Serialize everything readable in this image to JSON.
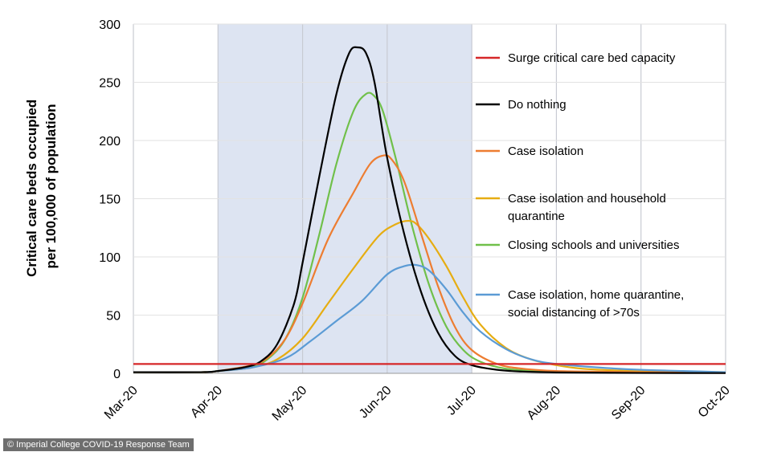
{
  "chart_data": {
    "type": "line",
    "title": "",
    "xlabel": "",
    "ylabel": "Critical care beds occupied per 100,000 of population",
    "ylabel_lines": [
      "Critical care beds occupied",
      "per 100,000 of population"
    ],
    "ylim": [
      0,
      300
    ],
    "yticks": [
      0,
      50,
      100,
      150,
      200,
      250,
      300
    ],
    "xlim": [
      0,
      7
    ],
    "xtick_labels": [
      "Mar-20",
      "Apr-20",
      "May-20",
      "Jun-20",
      "Jul-20",
      "Aug-20",
      "Sep-20",
      "Oct-20"
    ],
    "grid": true,
    "shaded_region": {
      "x_start": 1.0,
      "x_end": 4.0,
      "color": "#dde4f2"
    },
    "legend_position": "right",
    "series": [
      {
        "name": "Surge critical care bed capacity",
        "legend_lines": [
          "Surge critical care bed capacity"
        ],
        "color": "#d62728",
        "type": "hline",
        "y": 8
      },
      {
        "name": "Do nothing",
        "legend_lines": [
          "Do nothing"
        ],
        "color": "#000000",
        "x": [
          0,
          0.8,
          1.0,
          1.3,
          1.5,
          1.7,
          1.9,
          2.0,
          2.2,
          2.4,
          2.55,
          2.65,
          2.75,
          2.85,
          3.0,
          3.2,
          3.4,
          3.6,
          3.8,
          4.0,
          4.3,
          4.6,
          5.0,
          5.5,
          6.0,
          7.0
        ],
        "y": [
          1,
          1,
          2,
          5,
          10,
          25,
          60,
          95,
          170,
          240,
          275,
          280,
          275,
          250,
          185,
          120,
          70,
          35,
          15,
          7,
          3,
          1.5,
          0.8,
          0.5,
          0.3,
          0.2
        ]
      },
      {
        "name": "Case isolation",
        "legend_lines": [
          "Case isolation"
        ],
        "color": "#ed7d31",
        "x": [
          0,
          0.8,
          1.0,
          1.4,
          1.6,
          1.8,
          2.0,
          2.3,
          2.6,
          2.8,
          2.95,
          3.05,
          3.2,
          3.4,
          3.6,
          3.8,
          4.0,
          4.3,
          4.6,
          5.0,
          5.5,
          6.0,
          7.0
        ],
        "y": [
          1,
          1,
          2,
          7,
          14,
          30,
          60,
          115,
          155,
          180,
          187,
          184,
          165,
          120,
          75,
          40,
          20,
          8,
          4,
          2,
          1.5,
          1,
          0.5
        ]
      },
      {
        "name": "Case isolation and household quarantine",
        "legend_lines": [
          "Case isolation and household",
          "quarantine"
        ],
        "color": "#e6ad12",
        "x": [
          0,
          0.8,
          1.0,
          1.4,
          1.7,
          2.0,
          2.3,
          2.6,
          2.9,
          3.1,
          3.25,
          3.35,
          3.5,
          3.7,
          3.9,
          4.1,
          4.4,
          4.7,
          5.0,
          5.3,
          5.7,
          6.0,
          7.0
        ],
        "y": [
          1,
          1,
          2,
          5,
          12,
          30,
          60,
          90,
          118,
          128,
          131,
          128,
          115,
          92,
          65,
          42,
          22,
          12,
          7,
          4,
          2.5,
          2,
          1
        ]
      },
      {
        "name": "Closing schools and universities",
        "legend_lines": [
          "Closing schools and universities"
        ],
        "color": "#70c04a",
        "x": [
          0,
          0.8,
          1.0,
          1.4,
          1.6,
          1.8,
          2.0,
          2.2,
          2.4,
          2.6,
          2.75,
          2.85,
          2.95,
          3.1,
          3.3,
          3.5,
          3.7,
          3.9,
          4.1,
          4.4,
          4.8,
          5.2,
          6.0,
          7.0
        ],
        "y": [
          1,
          1,
          2,
          6,
          13,
          30,
          65,
          120,
          180,
          225,
          240,
          238,
          225,
          185,
          125,
          75,
          40,
          20,
          10,
          4,
          2,
          1.5,
          1,
          0.5
        ]
      },
      {
        "name": "Case isolation, home quarantine, social distancing of >70s",
        "legend_lines": [
          "Case isolation, home quarantine,",
          "social distancing of >70s"
        ],
        "color": "#5b9bd5",
        "x": [
          0,
          0.8,
          1.0,
          1.4,
          1.8,
          2.1,
          2.4,
          2.7,
          3.0,
          3.2,
          3.35,
          3.5,
          3.7,
          3.9,
          4.1,
          4.4,
          4.7,
          5.0,
          5.5,
          6.0,
          6.5,
          7.0
        ],
        "y": [
          1,
          1,
          2,
          5,
          13,
          28,
          45,
          62,
          85,
          92,
          93,
          88,
          72,
          52,
          36,
          21,
          12,
          8,
          5,
          3,
          2,
          1
        ]
      }
    ]
  },
  "credit": "© Imperial College COVID-19 Response Team"
}
